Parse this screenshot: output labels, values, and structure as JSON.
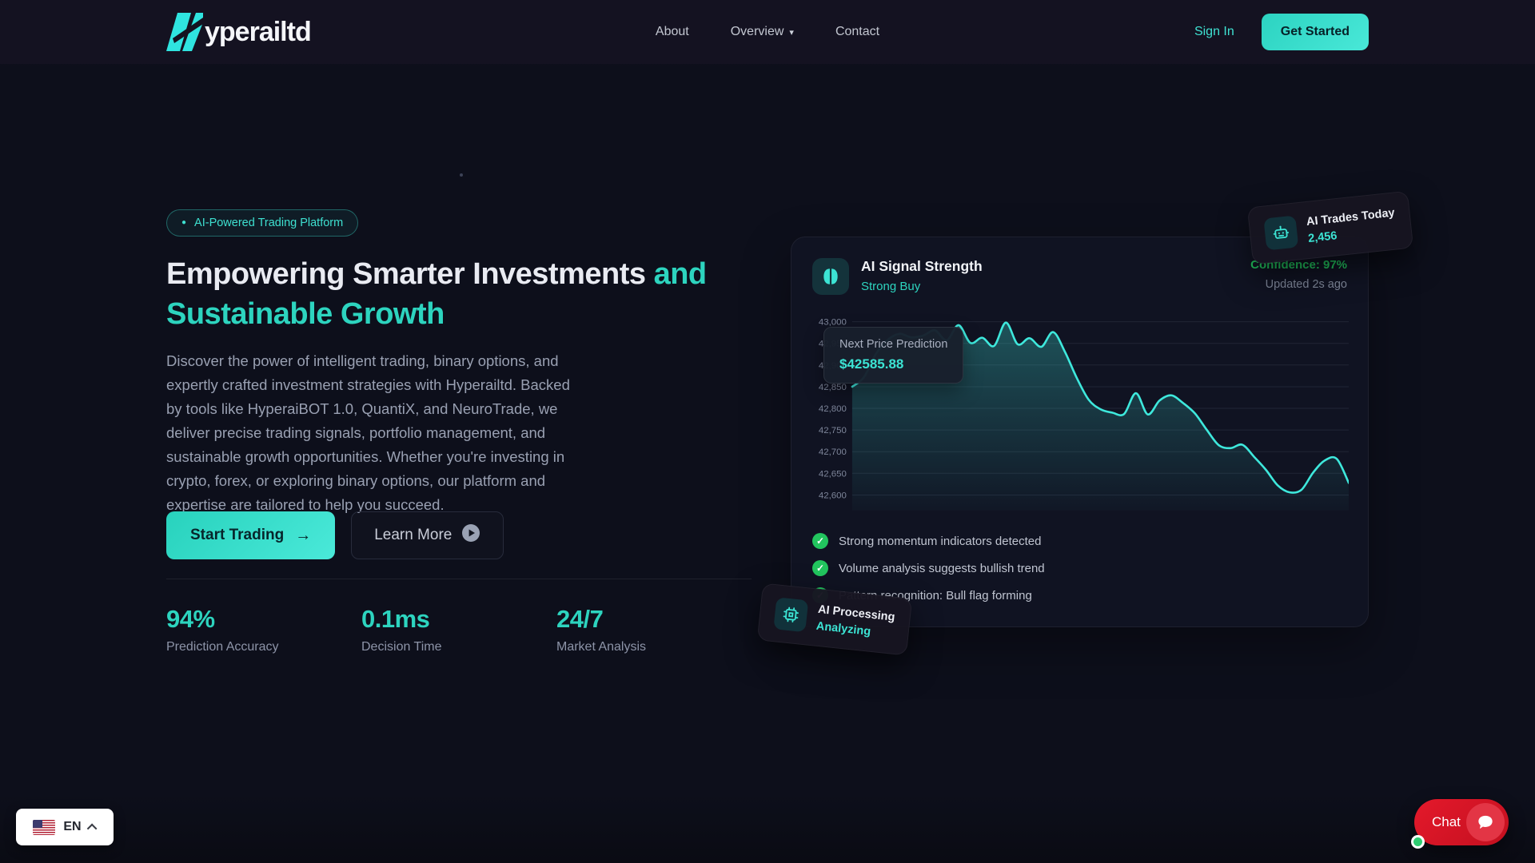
{
  "brand": {
    "logo_text": "yperailtd"
  },
  "nav": {
    "items": [
      {
        "label": "About"
      },
      {
        "label": "Overview",
        "caret": "▾"
      },
      {
        "label": "Contact"
      }
    ],
    "sign_in": "Sign In",
    "get_started": "Get Started"
  },
  "hero": {
    "badge_dot": "●",
    "badge": "AI-Powered Trading Platform",
    "title_white": "Empowering Smarter Investments ",
    "title_teal": "and Sustainable Growth",
    "description": "Discover the power of intelligent trading, binary options, and expertly crafted investment strategies with Hyperailtd. Backed by tools like HyperaiBOT 1.0, QuantiX, and NeuroTrade, we deliver precise trading signals, portfolio management, and sustainable growth opportunities. Whether you're investing in crypto, forex, or exploring binary options, our platform and expertise are tailored to help you succeed.",
    "cta_primary": "Start Trading",
    "cta_primary_icon": "→",
    "cta_secondary": "Learn More",
    "stats": [
      {
        "value": "94%",
        "label": "Prediction Accuracy"
      },
      {
        "value": "0.1ms",
        "label": "Decision Time"
      },
      {
        "value": "24/7",
        "label": "Market Analysis"
      }
    ]
  },
  "signal_card": {
    "title": "AI Signal Strength",
    "signal": "Strong Buy",
    "confidence": "Confidence: 97%",
    "updated": "Updated 2s ago",
    "tooltip": {
      "label": "Next Price Prediction",
      "value": "$42585.88"
    },
    "checklist": [
      "Strong momentum indicators detected",
      "Volume analysis suggests bullish trend",
      "Pattern recognition: Bull flag forming"
    ]
  },
  "floats": {
    "trades": {
      "title": "AI Trades Today",
      "value": "2,456"
    },
    "processing": {
      "title": "AI Processing",
      "status": "Analyzing"
    }
  },
  "chat": {
    "label": "Chat"
  },
  "language": {
    "code": "EN"
  },
  "colors": {
    "accent": "#2dd4bf",
    "green": "#22c55e",
    "chat_red": "#df1b2b",
    "page_bg": "#0d0f1b"
  },
  "chart_data": {
    "type": "area",
    "title": "AI Signal Strength live price",
    "ylim": [
      42590,
      43010
    ],
    "yticks": [
      43000,
      42950,
      42900,
      42850,
      42800,
      42750,
      42700,
      42650,
      42600
    ],
    "ytick_labels": [
      "43,000",
      "42,950",
      "42,900",
      "42,850",
      "42,800",
      "42,750",
      "42,700",
      "42,650",
      "42,600"
    ],
    "grid": true,
    "legend": "none",
    "line_color": "#3ee8dc",
    "points": [
      42850,
      42872,
      42925,
      42958,
      42972,
      42964,
      42968,
      42980,
      42957,
      42992,
      42951,
      42963,
      42944,
      42998,
      42948,
      42962,
      42942,
      42976,
      42930,
      42870,
      42820,
      42798,
      42790,
      42787,
      42835,
      42786,
      42818,
      42830,
      42812,
      42788,
      42750,
      42715,
      42708,
      42716,
      42688,
      42658,
      42622,
      42606,
      42612,
      42652,
      42680,
      42683,
      42628
    ]
  }
}
